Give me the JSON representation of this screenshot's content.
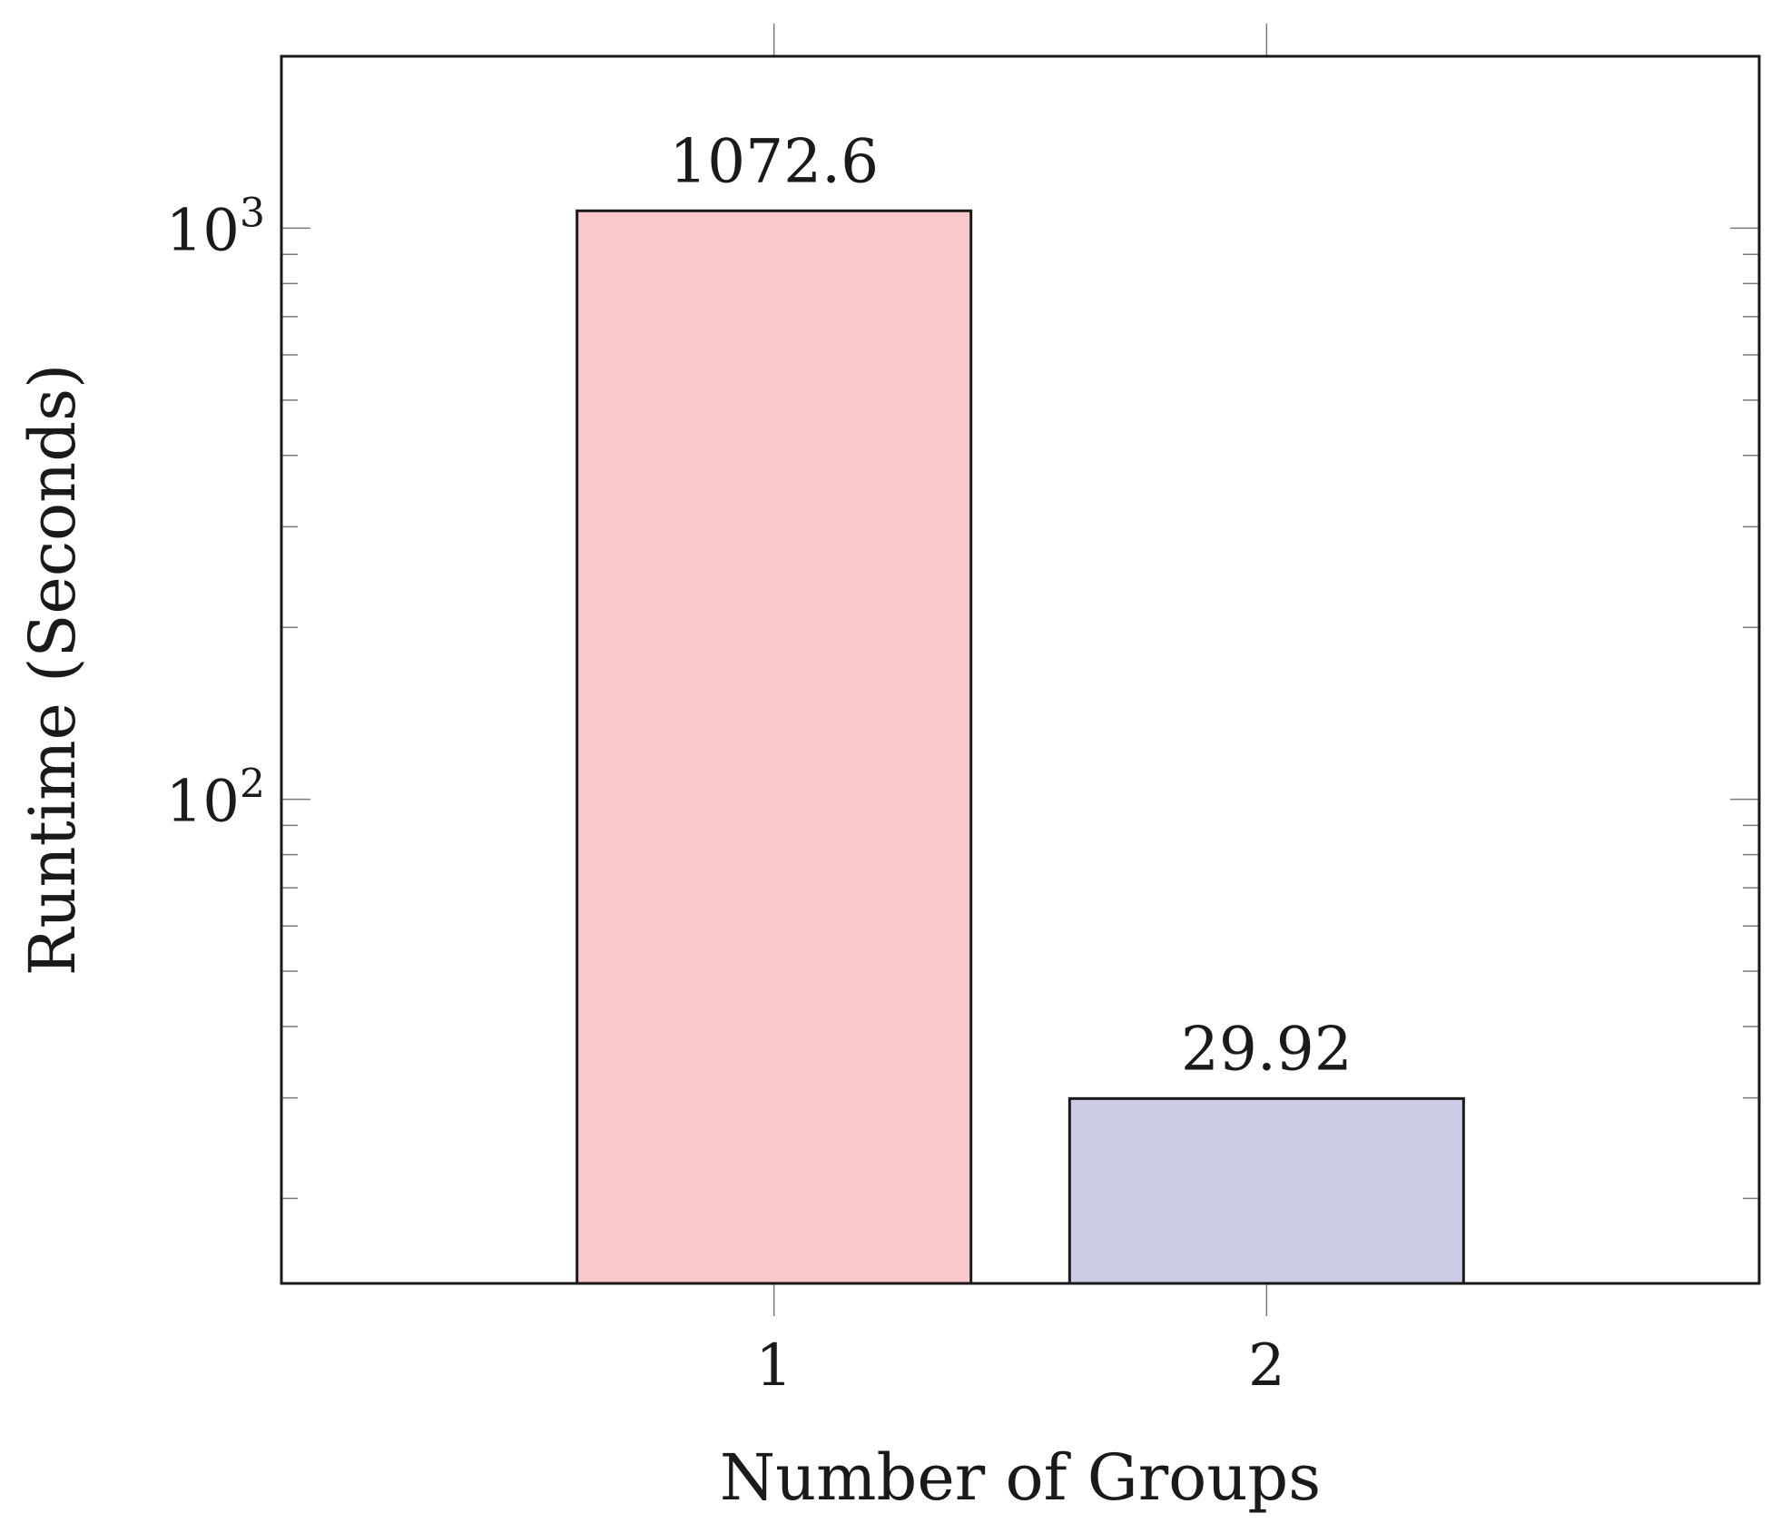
{
  "chart_data": {
    "type": "bar",
    "categories": [
      "1",
      "2"
    ],
    "values": [
      1072.6,
      29.92
    ],
    "value_labels": [
      "1072.6",
      "29.92"
    ],
    "bar_colors": [
      "#f8c8cc",
      "#cccce6"
    ],
    "xlabel": "Number of Groups",
    "ylabel": "Runtime (Seconds)",
    "yscale": "log",
    "ylim": [
      14.2,
      2000
    ],
    "yticks": [
      {
        "value": 100,
        "base": "10",
        "exp": "2"
      },
      {
        "value": 1000,
        "base": "10",
        "exp": "3"
      }
    ],
    "grid": false,
    "legend": "none"
  }
}
